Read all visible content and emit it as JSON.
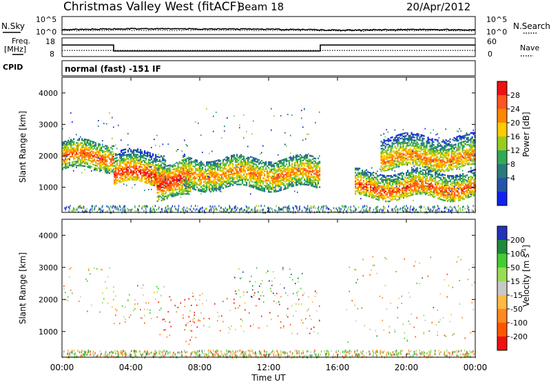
{
  "header": {
    "title": "Christmas Valley West (fitACF)",
    "beam": "Beam 18",
    "date": "20/Apr/2012"
  },
  "top_panels": {
    "nsky_label": "N.Sky",
    "nsearch_label": "N.Search",
    "noise_ticks_left": [
      "10^5",
      "10^0"
    ],
    "noise_ticks_right": [
      "10^5",
      "10^0"
    ],
    "freq_label_1": "Freq.",
    "freq_label_2": "[MHz]",
    "freq_ticks": [
      "18",
      "8"
    ],
    "nave_label": "Nave",
    "nave_ticks": [
      "60",
      "0"
    ],
    "cpid_label": "CPID",
    "cpid_text": "normal (fast) -151 IF"
  },
  "axes": {
    "xlabel": "Time UT",
    "ylabel_top": "Slant Range [km]",
    "ylabel_bottom": "Slant Range [km]",
    "x_ticks": [
      "00:00",
      "04:00",
      "08:00",
      "12:00",
      "16:00",
      "20:00",
      "00:00"
    ],
    "y_ticks": [
      "4000",
      "3000",
      "2000",
      "1000"
    ]
  },
  "colorbars": {
    "power": {
      "label": "Power [dB]",
      "ticks": [
        "28",
        "24",
        "20",
        "16",
        "12",
        "8",
        "4"
      ],
      "colors": [
        "#ee1111",
        "#ff5522",
        "#ff8800",
        "#ffcc00",
        "#99cc22",
        "#33aa55",
        "#2a7a7a",
        "#2255aa",
        "#1122ee"
      ]
    },
    "velocity": {
      "label_main": "Velocity [m s",
      "label_sup": "-1",
      "label_end": "]",
      "ticks": [
        "200",
        "100",
        "50",
        "15",
        "-15",
        "-50",
        "-100",
        "-200"
      ],
      "colors": [
        "#2233bb",
        "#1f8a3a",
        "#44cc33",
        "#99dd55",
        "#c8c8c8",
        "#ffbb44",
        "#ff8822",
        "#ff5500",
        "#ee1111"
      ]
    }
  },
  "chart_data": [
    {
      "type": "line",
      "title": "N.Sky / N.Search",
      "x": [
        "00:00",
        "04:00",
        "08:00",
        "12:00",
        "16:00",
        "20:00",
        "00:00"
      ],
      "xlim": [
        "00:00",
        "24:00"
      ],
      "yscale": "log",
      "ylim": [
        1,
        100000
      ],
      "series": [
        {
          "name": "N.Sky",
          "values": [
            12,
            28,
            22,
            18,
            8,
            14,
            12
          ]
        },
        {
          "name": "N.Search",
          "values": [
            6,
            8,
            8,
            7,
            5,
            6,
            6
          ]
        }
      ]
    },
    {
      "type": "line",
      "title": "Freq. [MHz] / Nave",
      "x": [
        "00:00",
        "03:00",
        "03:00",
        "15:00",
        "15:00",
        "24:00"
      ],
      "series": [
        {
          "name": "Freq. [MHz]",
          "values": [
            14.4,
            14.4,
            10.6,
            10.6,
            14.4,
            14.4
          ],
          "ylim": [
            8,
            18
          ]
        },
        {
          "name": "Nave",
          "values": [
            18,
            18,
            18,
            18,
            18,
            18
          ],
          "ylim": [
            0,
            60
          ]
        }
      ]
    },
    {
      "type": "heatmap",
      "title": "Power [dB]",
      "xlabel": "Time UT",
      "ylabel": "Slant Range [km]",
      "xlim": [
        "00:00",
        "24:00"
      ],
      "ylim": [
        200,
        4500
      ],
      "zlim": [
        0,
        30
      ],
      "x": [
        "00:00",
        "01:00",
        "02:00",
        "03:00",
        "04:00",
        "05:00",
        "06:00",
        "07:00",
        "08:00",
        "09:00",
        "10:00",
        "11:00",
        "12:00",
        "13:00",
        "14:00",
        "15:00",
        "16:00",
        "17:00",
        "18:00",
        "19:00",
        "20:00",
        "21:00",
        "22:00",
        "23:00"
      ],
      "bands": [
        {
          "start": "00:00",
          "end": "03:00",
          "range_km": [
            1550,
            2450
          ],
          "core_km": 1950,
          "peak_db": 26,
          "spread_km": [
            1400,
            3400
          ]
        },
        {
          "start": "03:00",
          "end": "06:00",
          "range_km": [
            1100,
            2100
          ],
          "core_km": 1400,
          "peak_db": 29,
          "spread_km": [
            900,
            3000
          ]
        },
        {
          "start": "05:30",
          "end": "07:30",
          "range_km": [
            650,
            1700
          ],
          "core_km": 1150,
          "peak_db": 30,
          "spread_km": [
            600,
            2400
          ]
        },
        {
          "start": "07:00",
          "end": "15:00",
          "range_km": [
            950,
            1900
          ],
          "core_km": 1400,
          "peak_db": 24,
          "spread_km": [
            800,
            3600
          ]
        },
        {
          "start": "17:00",
          "end": "24:00",
          "range_km": [
            650,
            1500
          ],
          "core_km": 950,
          "peak_db": 27,
          "spread_km": [
            600,
            1800
          ]
        },
        {
          "start": "18:30",
          "end": "24:00",
          "range_km": [
            1600,
            2600
          ],
          "core_km": 1900,
          "peak_db": 24,
          "spread_km": [
            1500,
            2900
          ]
        }
      ]
    },
    {
      "type": "heatmap",
      "title": "Velocity [m s-1]",
      "xlabel": "Time UT",
      "ylabel": "Slant Range [km]",
      "xlim": [
        "00:00",
        "24:00"
      ],
      "ylim": [
        200,
        4500
      ],
      "zlim": [
        -200,
        200
      ],
      "bands": [
        {
          "start": "00:00",
          "end": "03:00",
          "range_km": [
            1550,
            2600
          ],
          "velocity_ms": 0
        },
        {
          "start": "03:00",
          "end": "06:00",
          "range_km": [
            1100,
            2100
          ],
          "velocity_ms": 0
        },
        {
          "start": "05:30",
          "end": "08:00",
          "range_km": [
            600,
            1800
          ],
          "velocity_ms": -180
        },
        {
          "start": "07:00",
          "end": "15:00",
          "range_km": [
            950,
            1900
          ],
          "velocity_ms": -70
        },
        {
          "start": "10:00",
          "end": "14:00",
          "range_km": [
            1900,
            2700
          ],
          "velocity_ms": 110
        },
        {
          "start": "16:30",
          "end": "24:00",
          "range_km": [
            650,
            2600
          ],
          "velocity_ms": 0
        }
      ]
    }
  ]
}
